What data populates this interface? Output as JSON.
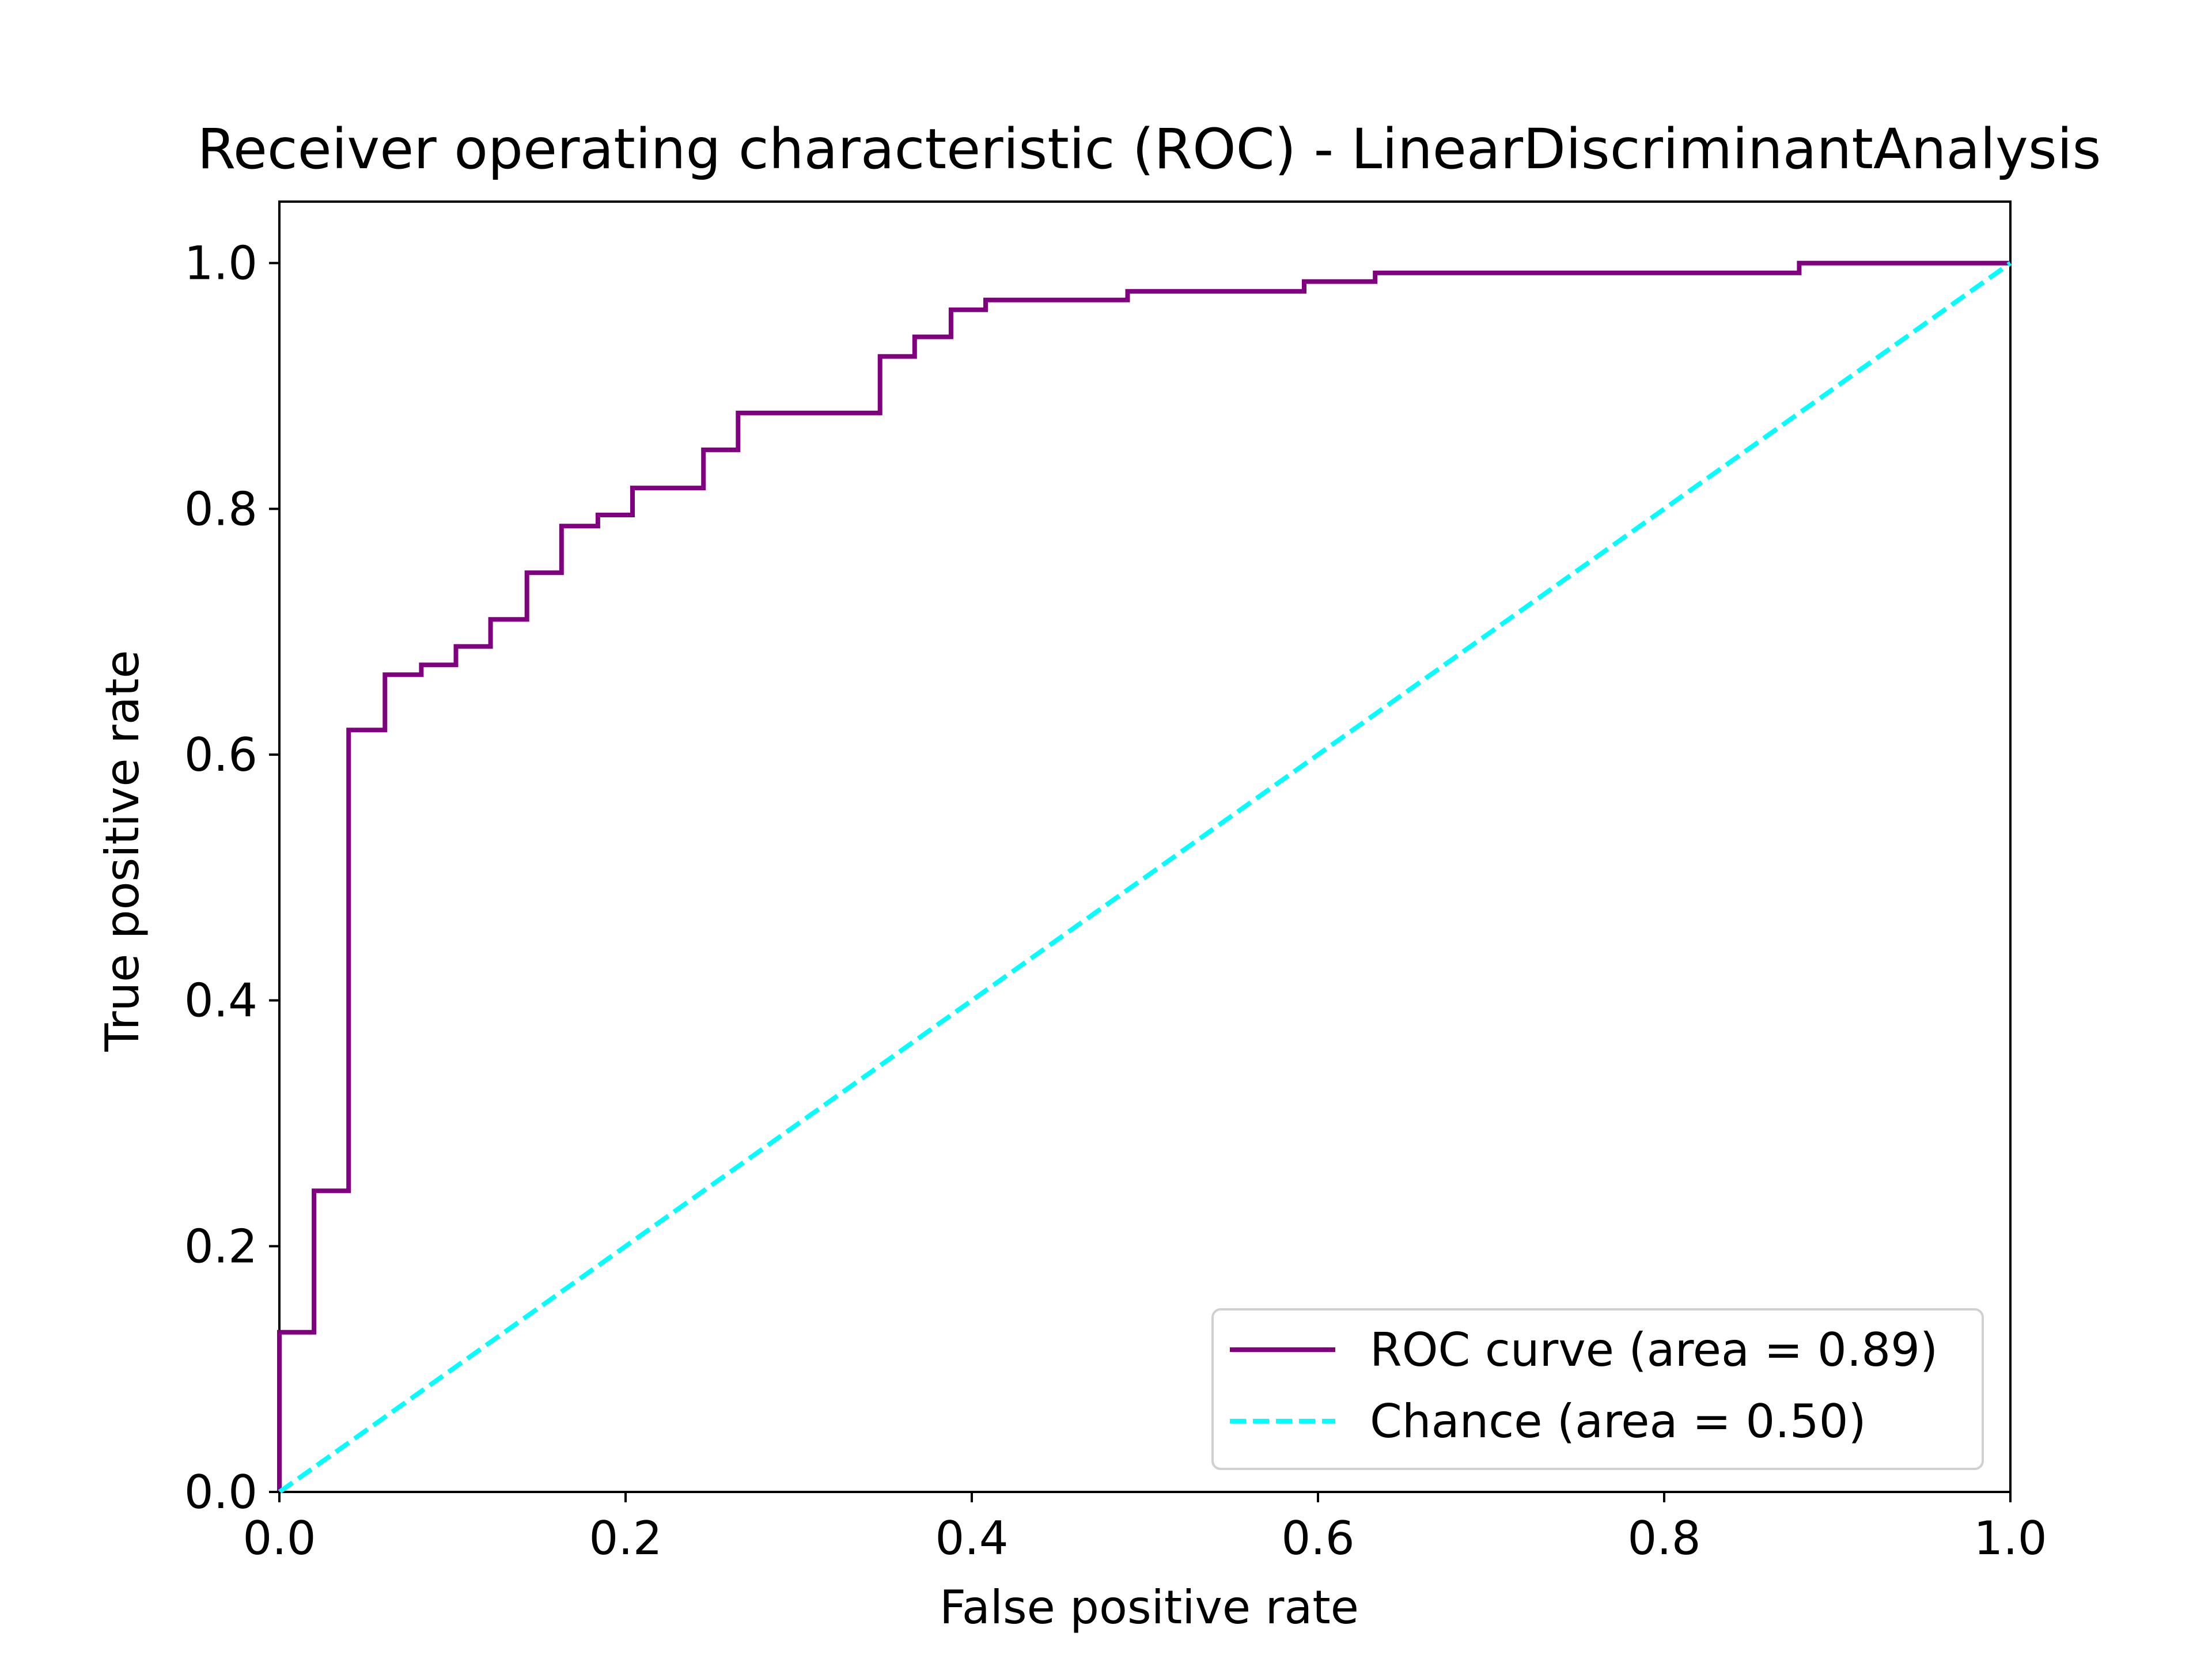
{
  "chart_data": {
    "type": "line",
    "title": "Receiver operating characteristic (ROC) - LinearDiscriminantAnalysis",
    "xlabel": "False positive rate",
    "ylabel": "True positive rate",
    "xlim": [
      0.0,
      1.0
    ],
    "ylim": [
      0.0,
      1.05
    ],
    "grid": false,
    "legend_position": "lower-right",
    "x_ticks": [
      "0.0",
      "0.2",
      "0.4",
      "0.6",
      "0.8",
      "1.0"
    ],
    "y_ticks": [
      "0.0",
      "0.2",
      "0.4",
      "0.6",
      "0.8",
      "1.0"
    ],
    "series": [
      {
        "name": "ROC curve (area = 0.89)",
        "color": "#800080",
        "style": "solid-step",
        "points": [
          [
            0.0,
            0.0
          ],
          [
            0.0,
            0.13
          ],
          [
            0.02,
            0.13
          ],
          [
            0.02,
            0.245
          ],
          [
            0.04,
            0.245
          ],
          [
            0.04,
            0.62
          ],
          [
            0.061,
            0.62
          ],
          [
            0.061,
            0.665
          ],
          [
            0.082,
            0.665
          ],
          [
            0.082,
            0.673
          ],
          [
            0.102,
            0.673
          ],
          [
            0.102,
            0.688
          ],
          [
            0.122,
            0.688
          ],
          [
            0.122,
            0.71
          ],
          [
            0.143,
            0.71
          ],
          [
            0.143,
            0.748
          ],
          [
            0.163,
            0.748
          ],
          [
            0.163,
            0.786
          ],
          [
            0.184,
            0.786
          ],
          [
            0.184,
            0.795
          ],
          [
            0.204,
            0.795
          ],
          [
            0.204,
            0.817
          ],
          [
            0.245,
            0.817
          ],
          [
            0.245,
            0.848
          ],
          [
            0.265,
            0.848
          ],
          [
            0.265,
            0.878
          ],
          [
            0.347,
            0.878
          ],
          [
            0.347,
            0.924
          ],
          [
            0.367,
            0.924
          ],
          [
            0.367,
            0.94
          ],
          [
            0.388,
            0.94
          ],
          [
            0.388,
            0.962
          ],
          [
            0.408,
            0.962
          ],
          [
            0.408,
            0.97
          ],
          [
            0.49,
            0.97
          ],
          [
            0.49,
            0.977
          ],
          [
            0.592,
            0.977
          ],
          [
            0.592,
            0.985
          ],
          [
            0.633,
            0.985
          ],
          [
            0.633,
            0.992
          ],
          [
            0.878,
            0.992
          ],
          [
            0.878,
            1.0
          ],
          [
            1.0,
            1.0
          ]
        ]
      },
      {
        "name": "Chance (area = 0.50)",
        "color": "#00ffff",
        "style": "dashed",
        "points": [
          [
            0.0,
            0.0
          ],
          [
            1.0,
            1.0
          ]
        ]
      }
    ]
  }
}
